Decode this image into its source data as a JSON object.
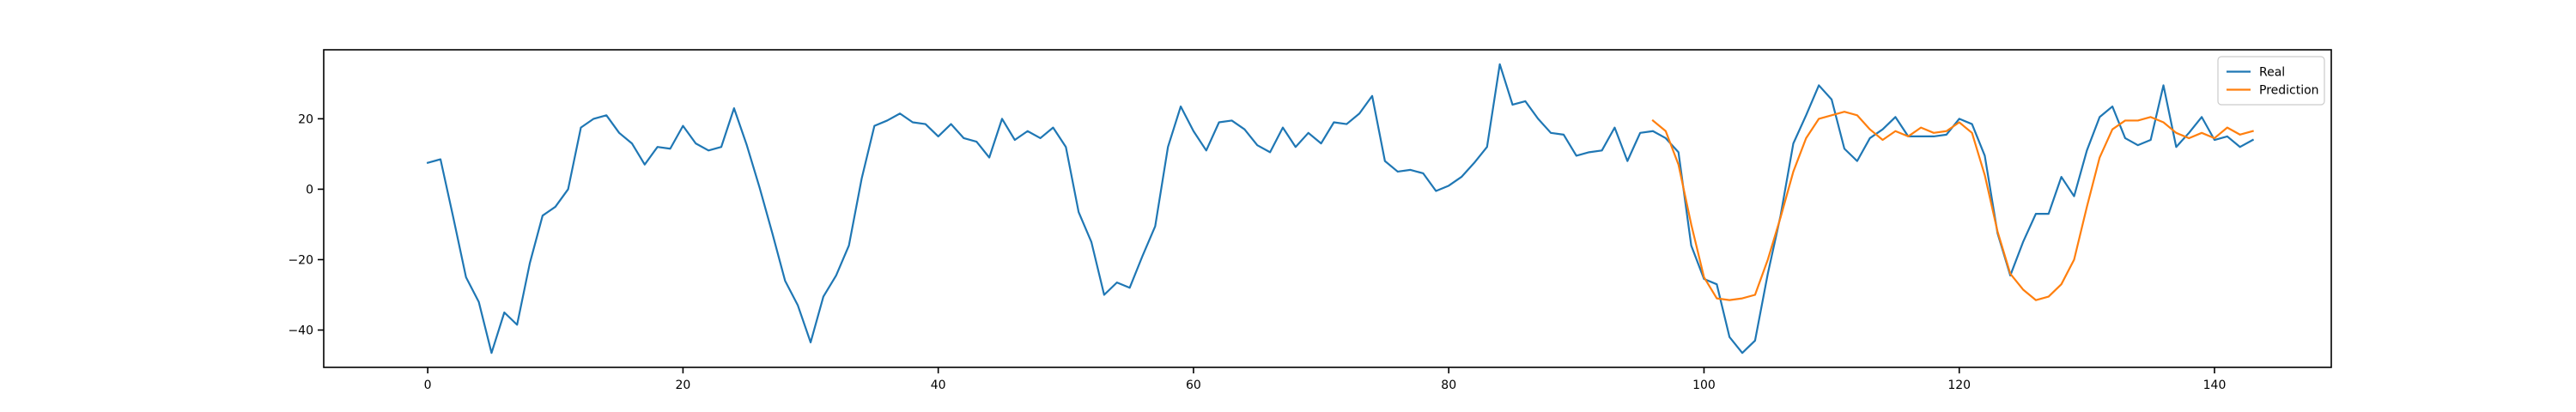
{
  "chart_data": {
    "type": "line",
    "title": "",
    "xlabel": "",
    "ylabel": "",
    "xlim": [
      -8.15,
      149.15
    ],
    "ylim": [
      -50.6,
      39.6
    ],
    "xticks": [
      0,
      20,
      40,
      60,
      80,
      100,
      120,
      140
    ],
    "yticks": [
      -40,
      -20,
      0,
      20
    ],
    "grid": false,
    "legend_position": "top-right",
    "series": [
      {
        "name": "Real",
        "color": "#1f77b4",
        "x_start": 0,
        "values": [
          7.5,
          8.5,
          -8,
          -25,
          -32,
          -46.5,
          -35,
          -38.5,
          -21,
          -7.5,
          -5,
          0,
          17.5,
          20,
          21,
          16,
          13,
          7,
          12,
          11.5,
          18,
          13,
          11,
          12,
          23,
          12.5,
          0.5,
          -12.5,
          -26,
          -33,
          -43.5,
          -30.5,
          -24.5,
          -16,
          3,
          18,
          19.5,
          21.5,
          19,
          18.5,
          15,
          18.5,
          14.5,
          13.5,
          9,
          20,
          14,
          16.5,
          14.5,
          17.5,
          12,
          -6.5,
          -15,
          -30,
          -26.5,
          -28,
          -19,
          -10.5,
          12,
          23.5,
          16.5,
          11,
          19,
          19.5,
          17,
          12.5,
          10.5,
          17.5,
          12,
          16,
          13,
          19,
          18.5,
          21.5,
          26.5,
          8,
          5,
          5.5,
          4.5,
          -0.5,
          1,
          3.5,
          7.5,
          12,
          35.5,
          24,
          25,
          20,
          16,
          15.5,
          9.5,
          10.5,
          11,
          17.5,
          8,
          16,
          16.5,
          14.5,
          10.5,
          -16,
          -25.5,
          -27,
          -42,
          -46.5,
          -43,
          -24,
          -7.5,
          13,
          21,
          29.5,
          25.5,
          11.5,
          8,
          14.5,
          17,
          20.5,
          15,
          15,
          15,
          15.5,
          20,
          18.5,
          9.5,
          -12.5,
          -24.5,
          -15,
          -7,
          -7,
          3.5,
          -2,
          11,
          20.5,
          23.5,
          14.5,
          12.5,
          14,
          29.5,
          12,
          16,
          20.5,
          14,
          15,
          12,
          14
        ]
      },
      {
        "name": "Prediction",
        "color": "#ff7f0e",
        "x_start": 96,
        "values": [
          19.5,
          16.5,
          7,
          -10,
          -25,
          -31,
          -31.5,
          -31,
          -30,
          -20,
          -8,
          5,
          14.5,
          20,
          21,
          22,
          21,
          17,
          14,
          16.5,
          15,
          17.5,
          16,
          16.5,
          19,
          16,
          4,
          -12,
          -24,
          -28.5,
          -31.5,
          -30.5,
          -27,
          -20,
          -5,
          9,
          17,
          19.5,
          19.5,
          20.5,
          19,
          16,
          14.5,
          16,
          14.5,
          17.5,
          15.5,
          16.5
        ]
      }
    ]
  }
}
